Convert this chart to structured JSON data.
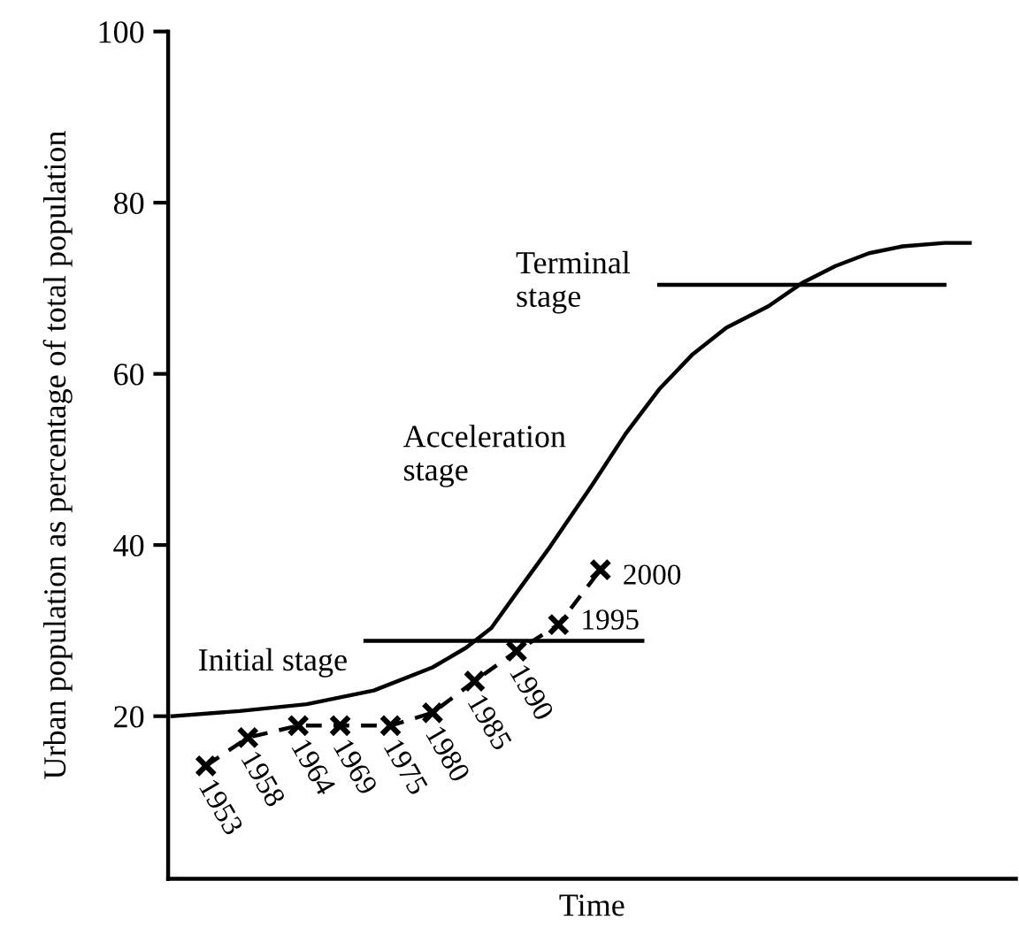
{
  "chart_data": {
    "type": "line",
    "xlabel": "Time",
    "ylabel": "Urban population as percentage of total population",
    "categories": [
      null,
      null,
      null,
      null,
      null,
      null,
      null,
      null,
      null,
      null,
      null,
      null,
      null,
      null,
      null,
      null,
      null,
      null,
      null,
      null,
      null,
      null,
      null,
      null,
      null,
      null,
      null,
      null,
      null,
      null,
      null,
      null,
      null,
      null,
      null,
      null,
      null,
      null,
      null,
      null,
      null,
      null,
      null,
      null,
      null,
      null,
      null,
      null,
      null,
      null,
      null,
      null,
      null,
      null,
      null,
      null,
      null,
      null,
      null,
      null,
      null,
      null,
      null,
      null,
      null,
      null,
      null,
      null,
      null,
      null,
      null,
      null,
      null,
      null,
      null,
      null,
      null,
      null,
      null,
      null,
      null,
      null,
      null,
      null,
      null,
      null,
      null,
      null,
      null,
      null,
      null,
      null,
      null,
      null,
      null,
      null,
      null,
      null,
      null,
      null,
      null
    ],
    "ylim": [
      1,
      100
    ],
    "yticks": [
      20,
      40,
      60,
      80,
      100
    ],
    "tick_labels": "y",
    "grid": false,
    "legend": false,
    "series": [
      {
        "color": "#000000",
        "line_style": "solid",
        "marker": "none",
        "values": [
          20.0,
          null,
          null,
          null,
          null,
          null,
          null,
          null,
          20.6,
          null,
          null,
          null,
          null,
          null,
          null,
          null,
          21.4,
          null,
          null,
          null,
          null,
          null,
          null,
          null,
          23.0,
          null,
          null,
          null,
          null,
          null,
          null,
          25.7,
          null,
          null,
          null,
          28.0,
          null,
          null,
          30.3,
          null,
          null,
          34.4,
          null,
          null,
          null,
          39.8,
          null,
          null,
          null,
          null,
          47.0,
          null,
          null,
          null,
          53.0,
          null,
          null,
          null,
          58.2,
          null,
          null,
          null,
          62.3,
          null,
          null,
          null,
          65.4,
          null,
          null,
          null,
          null,
          67.9,
          null,
          null,
          null,
          70.6,
          null,
          null,
          null,
          72.6,
          null,
          null,
          null,
          74.1,
          null,
          null,
          null,
          74.9,
          null,
          null,
          null,
          null,
          75.3,
          null,
          null,
          75.3,
          null,
          null,
          null,
          null,
          null
        ]
      },
      {
        "type": "line",
        "color": "#000000",
        "line_style": "dashed",
        "marker": "cross",
        "values": [
          null,
          null,
          null,
          null,
          14.2,
          null,
          null,
          null,
          null,
          17.5,
          null,
          null,
          null,
          null,
          null,
          18.9,
          null,
          null,
          null,
          null,
          18.9,
          null,
          null,
          null,
          null,
          null,
          18.9,
          null,
          null,
          null,
          null,
          20.4,
          null,
          null,
          null,
          null,
          24.1,
          null,
          null,
          null,
          null,
          27.6,
          null,
          null,
          null,
          null,
          30.7,
          null,
          null,
          null,
          null,
          37.1,
          null,
          null,
          null,
          null,
          null,
          null,
          null,
          null,
          null,
          null,
          null,
          null,
          null,
          null,
          null,
          null,
          null,
          null,
          null,
          null,
          null,
          null,
          null,
          null,
          null,
          null,
          null,
          null,
          null,
          null,
          null,
          null,
          null,
          null,
          null,
          null,
          null,
          null,
          null,
          null,
          null,
          null,
          null,
          null,
          null,
          null,
          null,
          null,
          null
        ]
      },
      {
        "type": "line",
        "color": "#000000",
        "line_style": "solid",
        "marker": "none",
        "values": [
          null,
          null,
          null,
          null,
          null,
          null,
          null,
          null,
          null,
          null,
          null,
          null,
          null,
          null,
          null,
          null,
          null,
          null,
          null,
          null,
          null,
          null,
          null,
          28.8,
          null,
          null,
          null,
          null,
          null,
          null,
          null,
          null,
          null,
          null,
          null,
          null,
          null,
          null,
          null,
          null,
          null,
          null,
          null,
          null,
          null,
          null,
          null,
          null,
          null,
          null,
          null,
          null,
          null,
          null,
          null,
          null,
          28.8,
          null,
          null,
          null,
          null,
          null,
          null,
          null,
          null,
          null,
          null,
          null,
          null,
          null,
          null,
          null,
          null,
          null,
          null,
          null,
          null,
          null,
          null,
          null,
          null,
          null,
          null,
          null,
          null,
          null,
          null,
          null,
          null,
          null,
          null,
          null,
          null,
          null,
          null,
          null,
          null,
          null,
          null,
          null,
          null
        ]
      },
      {
        "type": "line",
        "color": "#000000",
        "line_style": "solid",
        "marker": "none",
        "values": [
          null,
          null,
          null,
          null,
          null,
          null,
          null,
          null,
          null,
          null,
          null,
          null,
          null,
          null,
          null,
          null,
          null,
          null,
          null,
          null,
          null,
          null,
          null,
          null,
          null,
          null,
          null,
          null,
          null,
          null,
          null,
          null,
          null,
          null,
          null,
          null,
          null,
          null,
          null,
          null,
          null,
          null,
          null,
          null,
          null,
          null,
          null,
          null,
          null,
          null,
          null,
          null,
          null,
          null,
          null,
          null,
          null,
          null,
          70.4,
          null,
          null,
          null,
          null,
          null,
          null,
          null,
          null,
          null,
          null,
          null,
          null,
          null,
          null,
          null,
          null,
          null,
          null,
          null,
          null,
          null,
          null,
          null,
          null,
          null,
          null,
          null,
          null,
          null,
          null,
          null,
          null,
          null,
          70.4,
          null,
          null,
          null,
          null,
          null,
          null,
          null,
          null
        ]
      }
    ],
    "annotations": [
      "1953",
      "1958",
      "1964",
      "1969",
      "1975",
      "1980",
      "1985",
      "1990",
      "1995",
      "2000",
      "Initial stage",
      "Acceleration\nstage",
      "Terminal\nstage"
    ]
  }
}
